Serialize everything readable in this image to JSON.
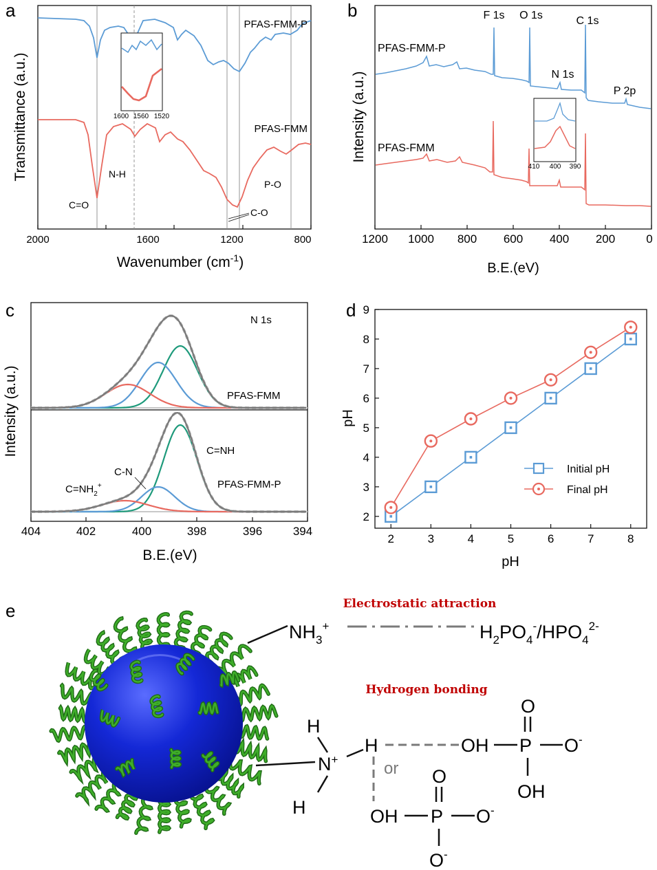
{
  "colors": {
    "blue": "#5b9bd5",
    "red": "#e8695f",
    "gray": "#7a7a7a",
    "green": "#1e9a7b",
    "sphere": "#1428d6",
    "coil": "#2e8a1f",
    "title_red": "#c00000"
  },
  "panel_a": {
    "letter": "a",
    "ylabel": "Transmittance (a.u.)",
    "xlabel": "Wavenumber (cm",
    "xlabel_sup": "-1",
    "xlabel_tail": ")",
    "xticks": [
      "2000",
      "1600",
      "1200",
      "800"
    ],
    "series_top": "PFAS-FMM-P",
    "series_bottom": "PFAS-FMM",
    "bands": {
      "co": "C=O",
      "nh": "N-H",
      "po": "P-O",
      "c_o": "C-O"
    },
    "inset_ticks": [
      "1600",
      "1560",
      "1520"
    ]
  },
  "panel_b": {
    "letter": "b",
    "ylabel": "Intensity (a.u.)",
    "xlabel": "B.E.(eV)",
    "xticks": [
      "1200",
      "1000",
      "800",
      "600",
      "400",
      "200",
      "0"
    ],
    "series_top": "PFAS-FMM-P",
    "series_bottom": "PFAS-FMM",
    "peaks": {
      "f1s": "F 1s",
      "o1s": "O 1s",
      "c1s": "C 1s",
      "n1s": "N 1s",
      "p2p": "P 2p"
    },
    "inset_ticks": [
      "410",
      "400",
      "390"
    ]
  },
  "panel_c": {
    "letter": "c",
    "ylabel": "Intensity (a.u.)",
    "xlabel": "B.E.(eV)",
    "xticks": [
      "404",
      "402",
      "400",
      "398",
      "396",
      "394"
    ],
    "region": "N 1s",
    "series_top": "PFAS-FMM",
    "series_bottom": "PFAS-FMM-P",
    "components": {
      "cnh": "C=NH",
      "cn": "C-N",
      "cnh2_main": "C=NH",
      "cnh2_sub": "2",
      "cnh2_sup": "+"
    }
  },
  "panel_d": {
    "letter": "d",
    "xlabel": "pH",
    "ylabel": "pH"
  },
  "chart_data": [
    {
      "panel": "d",
      "type": "line",
      "x": [
        2,
        3,
        4,
        5,
        6,
        7,
        8
      ],
      "xlabel": "pH",
      "ylabel": "pH",
      "xlim": [
        1.6,
        8.4
      ],
      "ylim": [
        1.6,
        9
      ],
      "yticks": [
        2,
        3,
        4,
        5,
        6,
        7,
        8,
        9
      ],
      "legend_position": "right",
      "series": [
        {
          "name": "Initial pH",
          "marker": "square",
          "color": "#5b9bd5",
          "values": [
            2,
            3,
            4,
            5,
            6,
            7,
            8
          ]
        },
        {
          "name": "Final pH",
          "marker": "circle",
          "color": "#e8695f",
          "values": [
            2.3,
            4.55,
            5.3,
            6.0,
            6.62,
            7.55,
            8.4
          ]
        }
      ]
    },
    {
      "panel": "c",
      "type": "line",
      "xlabel": "B.E.(eV)",
      "ylabel": "Intensity (a.u.)",
      "xlim": [
        404,
        394
      ],
      "series": [
        {
          "name": "PFAS-FMM",
          "components": [
            {
              "label": "",
              "center": 398.6,
              "color": "#1e9a7b"
            },
            {
              "label": "",
              "center": 399.4,
              "color": "#5b9bd5"
            },
            {
              "label": "",
              "center": 400.5,
              "color": "#e8695f"
            }
          ]
        },
        {
          "name": "PFAS-FMM-P",
          "components": [
            {
              "label": "C=NH",
              "center": 398.6,
              "color": "#1e9a7b"
            },
            {
              "label": "C-N",
              "center": 399.4,
              "color": "#5b9bd5"
            },
            {
              "label": "C=NH2+",
              "center": 400.6,
              "color": "#e8695f"
            }
          ]
        }
      ]
    }
  ],
  "panel_e": {
    "letter": "e",
    "title_1": "Electrostatic attraction",
    "title_2": "Hydrogen bonding",
    "nh3": "NH",
    "nh3_sub": "3",
    "nh3_sup": "+",
    "h2po4_a": "H",
    "h2po4_a_sub": "2",
    "h2po4_b": "PO",
    "h2po4_b_sub": "4",
    "h2po4_b_sup": "-",
    "slash_hpo4": "/HPO",
    "hpo4_sub": "4",
    "hpo4_sup": "2-",
    "h": "H",
    "n": "N",
    "n_sup": "+",
    "or": "or",
    "o": "O",
    "oh": "OH",
    "p": "P",
    "o_minus": "O",
    "minus": "-"
  }
}
